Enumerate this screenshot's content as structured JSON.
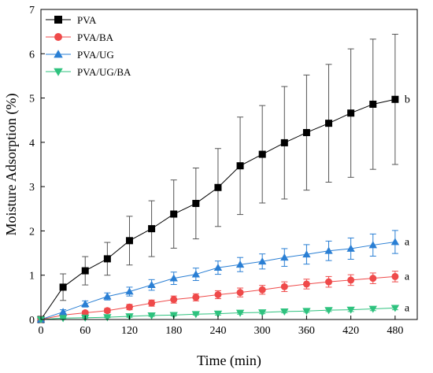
{
  "chart_data": {
    "type": "line",
    "title": "",
    "xlabel": "Time (min)",
    "ylabel": "Moisture Adsorption (%)",
    "xlim": [
      0,
      510
    ],
    "ylim": [
      0,
      7
    ],
    "xticks": [
      0,
      60,
      120,
      180,
      240,
      300,
      360,
      420,
      480
    ],
    "yticks": [
      0,
      1,
      2,
      3,
      4,
      5,
      6,
      7
    ],
    "x": [
      0,
      30,
      60,
      90,
      120,
      150,
      180,
      210,
      240,
      270,
      300,
      330,
      360,
      390,
      420,
      450,
      480
    ],
    "legend_position": "top-left",
    "series": [
      {
        "name": "PVA",
        "color": "#000000",
        "marker": "square",
        "values": [
          0,
          0.73,
          1.1,
          1.37,
          1.78,
          2.05,
          2.38,
          2.62,
          2.98,
          3.47,
          3.73,
          3.99,
          4.22,
          4.43,
          4.66,
          4.86,
          4.97
        ],
        "errors": [
          0,
          0.3,
          0.32,
          0.37,
          0.55,
          0.63,
          0.77,
          0.8,
          0.88,
          1.1,
          1.1,
          1.27,
          1.3,
          1.33,
          1.45,
          1.47,
          1.47
        ]
      },
      {
        "name": "PVA/BA",
        "color": "#ef4a4a",
        "marker": "circle",
        "values": [
          0,
          0.1,
          0.15,
          0.2,
          0.28,
          0.37,
          0.45,
          0.5,
          0.56,
          0.61,
          0.67,
          0.74,
          0.8,
          0.85,
          0.89,
          0.93,
          0.97
        ],
        "errors": [
          0,
          0.03,
          0.04,
          0.05,
          0.06,
          0.07,
          0.08,
          0.08,
          0.09,
          0.1,
          0.1,
          0.11,
          0.11,
          0.12,
          0.12,
          0.12,
          0.12
        ]
      },
      {
        "name": "PVA/UG",
        "color": "#2a7fd4",
        "marker": "triangle-up",
        "values": [
          0,
          0.17,
          0.35,
          0.52,
          0.63,
          0.78,
          0.93,
          1.02,
          1.17,
          1.24,
          1.31,
          1.4,
          1.47,
          1.55,
          1.6,
          1.68,
          1.75
        ],
        "errors": [
          0,
          0.05,
          0.07,
          0.08,
          0.1,
          0.12,
          0.14,
          0.14,
          0.15,
          0.16,
          0.17,
          0.2,
          0.22,
          0.22,
          0.24,
          0.25,
          0.26
        ]
      },
      {
        "name": "PVA/UG/BA",
        "color": "#2ec27e",
        "marker": "triangle-down",
        "values": [
          0,
          0.03,
          0.04,
          0.05,
          0.07,
          0.09,
          0.1,
          0.12,
          0.13,
          0.15,
          0.16,
          0.18,
          0.19,
          0.21,
          0.22,
          0.24,
          0.26
        ],
        "errors": [
          0,
          0.01,
          0.01,
          0.01,
          0.02,
          0.02,
          0.02,
          0.02,
          0.03,
          0.03,
          0.03,
          0.03,
          0.03,
          0.03,
          0.04,
          0.04,
          0.04
        ]
      }
    ],
    "annotations": [
      {
        "text": "b",
        "series": "PVA"
      },
      {
        "text": "a",
        "series": "PVA/UG"
      },
      {
        "text": "a",
        "series": "PVA/BA"
      },
      {
        "text": "a",
        "series": "PVA/UG/BA"
      }
    ]
  }
}
